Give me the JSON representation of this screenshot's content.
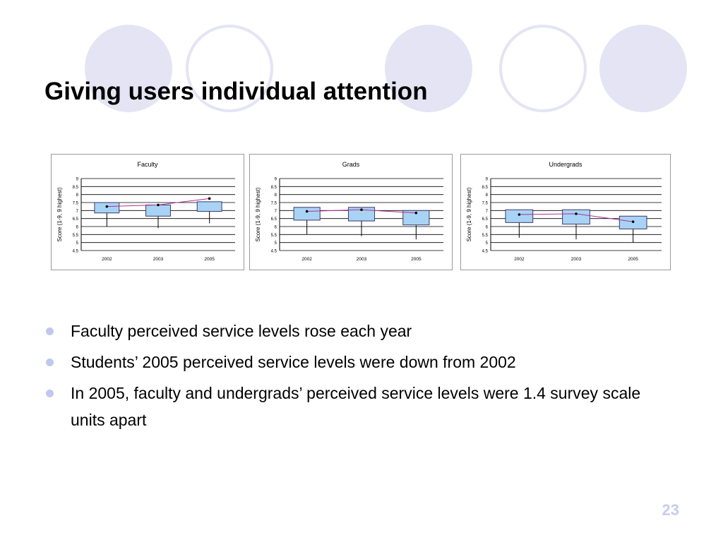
{
  "slide": {
    "title": "Giving users individual attention",
    "page_number": "23",
    "bullets": [
      "Faculty perceived service levels rose each year",
      "Students’ 2005 perceived service levels were down from 2002",
      "In 2005, faculty and undergrads’ perceived service levels were 1.4 survey scale units apart"
    ],
    "colors": {
      "decor_circle": "#e4e4f4",
      "bullet_dot": "#c0c8f0",
      "box_fill": "#a9d3f5",
      "box_stroke": "#3a3a6a",
      "mean_line": "#b03090",
      "page_number": "#c8ccf0"
    }
  },
  "chart_data": [
    {
      "type": "box",
      "title": "Faculty",
      "ylabel": "Score (1-9, 9 highest)",
      "ylim": [
        4.5,
        9
      ],
      "yticks": [
        "9",
        "8.5",
        "8",
        "7.5",
        "7",
        "6.5",
        "6",
        "5.5",
        "5",
        "4.5"
      ],
      "categories": [
        "2002",
        "2003",
        "2005"
      ],
      "boxes": [
        {
          "q1": 6.85,
          "q3": 7.5,
          "whisker_low": 6.0,
          "mean": 7.25
        },
        {
          "q1": 6.65,
          "q3": 7.35,
          "whisker_low": 5.9,
          "mean": 7.35
        },
        {
          "q1": 6.95,
          "q3": 7.55,
          "whisker_low": 6.2,
          "mean": 7.75
        }
      ]
    },
    {
      "type": "box",
      "title": "Grads",
      "ylabel": "Score (1-9, 9 highest)",
      "ylim": [
        4.5,
        9
      ],
      "yticks": [
        "9",
        "8.5",
        "8",
        "7.5",
        "7",
        "6.5",
        "6",
        "5.5",
        "5",
        "4.5"
      ],
      "categories": [
        "2002",
        "2003",
        "2005"
      ],
      "boxes": [
        {
          "q1": 6.4,
          "q3": 7.2,
          "whisker_low": 5.5,
          "mean": 6.95
        },
        {
          "q1": 6.35,
          "q3": 7.2,
          "whisker_low": 5.4,
          "mean": 7.05
        },
        {
          "q1": 6.1,
          "q3": 7.0,
          "whisker_low": 5.2,
          "mean": 6.85
        }
      ]
    },
    {
      "type": "box",
      "title": "Undergrads",
      "ylabel": "Score (1-9, 9 highest)",
      "ylim": [
        4.5,
        9
      ],
      "yticks": [
        "9",
        "8.5",
        "8",
        "7.5",
        "7",
        "6.5",
        "6",
        "5.5",
        "5",
        "4.5"
      ],
      "categories": [
        "2002",
        "2003",
        "2005"
      ],
      "boxes": [
        {
          "q1": 6.25,
          "q3": 7.05,
          "whisker_low": 5.3,
          "mean": 6.75
        },
        {
          "q1": 6.15,
          "q3": 7.05,
          "whisker_low": 5.2,
          "mean": 6.8
        },
        {
          "q1": 5.85,
          "q3": 6.65,
          "whisker_low": 5.0,
          "mean": 6.3
        }
      ]
    }
  ]
}
